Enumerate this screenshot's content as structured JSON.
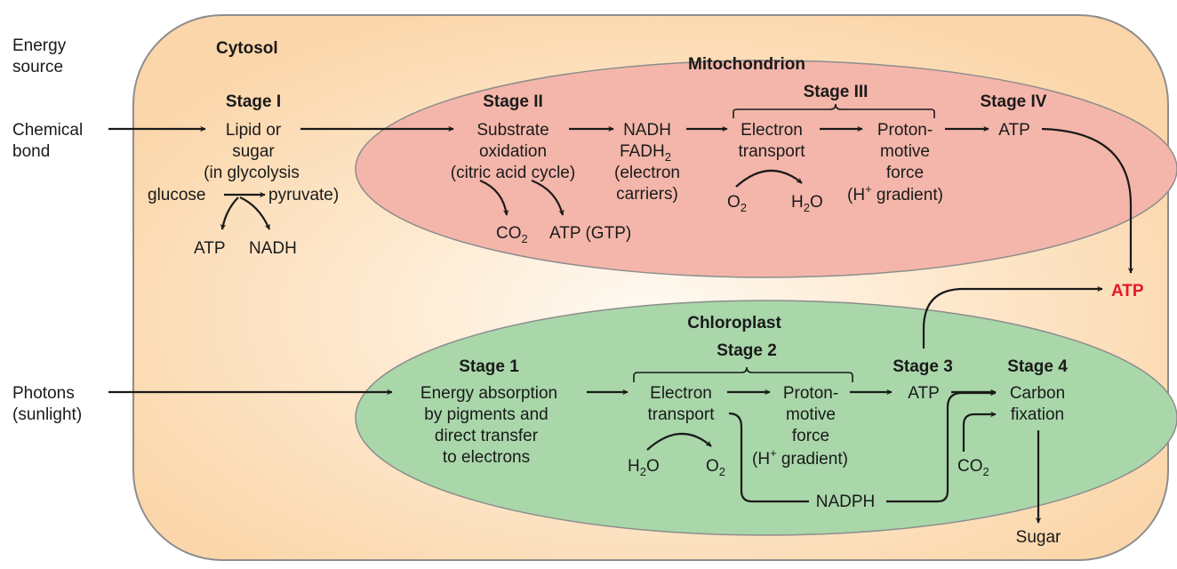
{
  "source": {
    "heading_line1": "Energy",
    "heading_line2": "source",
    "chemical_line1": "Chemical",
    "chemical_line2": "bond",
    "photons_line1": "Photons",
    "photons_line2": "(sunlight)"
  },
  "cytosol": {
    "label": "Cytosol",
    "stage_label": "Stage I",
    "line1": "Lipid or",
    "line2": "sugar",
    "line3": "(in glycolysis",
    "glucose": "glucose",
    "pyruvate": "pyruvate)",
    "atp": "ATP",
    "nadh": "NADH"
  },
  "mitochondrion": {
    "label": "Mitochondrion",
    "stage2_label": "Stage II",
    "stage2_line1": "Substrate",
    "stage2_line2": "oxidation",
    "stage2_line3": "(citric acid cycle)",
    "co2_main": "CO",
    "co2_sub": "2",
    "atp_gtp": "ATP (GTP)",
    "nadh": "NADH",
    "fadh_main": "FADH",
    "fadh_sub": "2",
    "carriers_line1": "(electron",
    "carriers_line2": "carriers)",
    "stage3_label": "Stage III",
    "et_line1": "Electron",
    "et_line2": "transport",
    "o2_main": "O",
    "o2_sub": "2",
    "h2o_h": "H",
    "h2o_sub": "2",
    "h2o_o": "O",
    "pmf_line1": "Proton-",
    "pmf_line2": "motive",
    "pmf_line3": "force",
    "gradient_open": "(H",
    "gradient_sup": "+",
    "gradient_close": " gradient)",
    "stage4_label": "Stage IV",
    "atp": "ATP"
  },
  "output": {
    "atp": "ATP",
    "color": "#e2182a"
  },
  "chloroplast": {
    "label": "Chloroplast",
    "stage1_label": "Stage 1",
    "s1_line1": "Energy absorption",
    "s1_line2": "by pigments and",
    "s1_line3": "direct transfer",
    "s1_line4": "to electrons",
    "stage2_label": "Stage 2",
    "et_line1": "Electron",
    "et_line2": "transport",
    "h2o_h": "H",
    "h2o_sub": "2",
    "h2o_o": "O",
    "o2_main": "O",
    "o2_sub": "2",
    "pmf_line1": "Proton-",
    "pmf_line2": "motive",
    "pmf_line3": "force",
    "gradient_open": "(H",
    "gradient_sup": "+",
    "gradient_close": " gradient)",
    "stage3_label": "Stage 3",
    "atp": "ATP",
    "stage4_label": "Stage 4",
    "cf_line1": "Carbon",
    "cf_line2": "fixation",
    "co2_main": "CO",
    "co2_sub": "2",
    "nadph": "NADPH",
    "sugar": "Sugar"
  },
  "colors": {
    "cytosol_fill": "#fbd9b0",
    "cytosol_border": "#8d8d8d",
    "mito_fill": "#f4b6aa",
    "chloro_fill": "#a9d7aa",
    "arrow": "#1a1a1a"
  }
}
